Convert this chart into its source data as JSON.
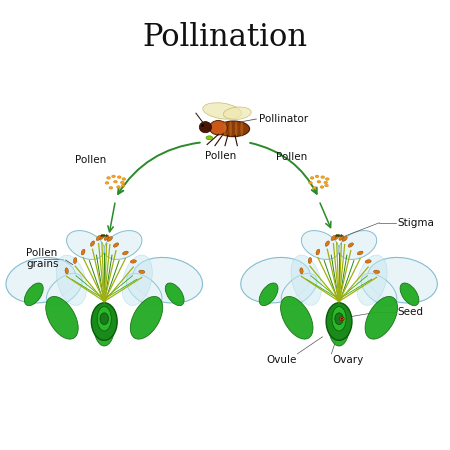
{
  "title": "Pollination",
  "title_fontsize": 22,
  "title_font": "DejaVu Serif",
  "labels": {
    "pollinator": "Pollinator",
    "pollen_bee": "Pollen",
    "pollen_left": "Pollen",
    "pollen_right": "Pollen",
    "pollen_grains": "Pollen\ngrains",
    "stigma": "Stigma",
    "seed": "Seed",
    "ovule": "Ovule",
    "ovary": "Ovary"
  },
  "arrow_color": "#2a8a2a",
  "label_fontsize": 7.5,
  "petal_color": "#e8f4f8",
  "petal_edge": "#7ab8cc",
  "sepal_color": "#22aa22",
  "sepal_edge": "#157015",
  "stamen_color": "#a0b010",
  "anther_color": "#e07810",
  "ovary_outer": "#1a8a1a",
  "ovary_inner": "#2ab82a",
  "seed_color": "#cc5500",
  "bee_abdomen": "#7a2a05",
  "bee_thorax": "#c05010",
  "bee_wing": "#e8d890",
  "bee_head": "#3a1505"
}
